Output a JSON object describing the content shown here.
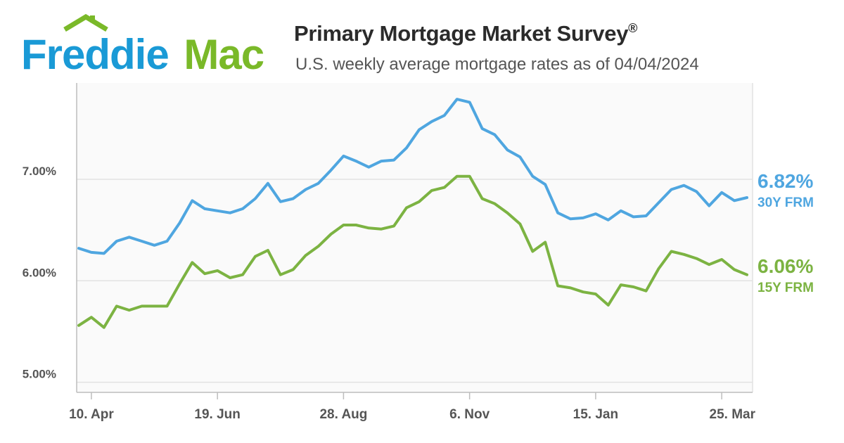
{
  "logo": {
    "text_1": "Freddie",
    "text_2": "Mac"
  },
  "header": {
    "title": "Primary Mortgage Market Survey",
    "title_mark": "®",
    "subtitle": "U.S. weekly average mortgage rates as of 04/04/2024"
  },
  "colors": {
    "series_30y": "#4fa6e0",
    "series_15y": "#7cb342",
    "logo_blue": "#1a9ad6",
    "logo_green": "#7ab929",
    "grid": "#e2e2e2",
    "axis": "#bdbdbd",
    "plot_bg": "#fafafa"
  },
  "chart_data": {
    "type": "line",
    "title": "Primary Mortgage Market Survey",
    "subtitle": "U.S. weekly average mortgage rates as of 04/04/2024",
    "xlabel": "",
    "ylabel": "",
    "ylim": [
      4.9,
      7.95
    ],
    "yticks": [
      {
        "value": 5.0,
        "label": "5.00%"
      },
      {
        "value": 6.0,
        "label": "6.00%"
      },
      {
        "value": 7.0,
        "label": "7.00%"
      }
    ],
    "xticks": [
      {
        "index": 1,
        "label": "10. Apr"
      },
      {
        "index": 11,
        "label": "19. Jun"
      },
      {
        "index": 21,
        "label": "28. Aug"
      },
      {
        "index": 31,
        "label": "6. Nov"
      },
      {
        "index": 41,
        "label": "15. Jan"
      },
      {
        "index": 51,
        "label": "25. Mar"
      }
    ],
    "grid": true,
    "series": [
      {
        "name": "30Y FRM",
        "end_label": "6.82%",
        "color": "#4fa6e0",
        "values": [
          6.32,
          6.28,
          6.27,
          6.39,
          6.43,
          6.39,
          6.35,
          6.39,
          6.57,
          6.79,
          6.71,
          6.69,
          6.67,
          6.71,
          6.81,
          6.96,
          6.78,
          6.81,
          6.9,
          6.96,
          7.09,
          7.23,
          7.18,
          7.12,
          7.18,
          7.19,
          7.31,
          7.49,
          7.57,
          7.63,
          7.79,
          7.76,
          7.5,
          7.44,
          7.29,
          7.22,
          7.03,
          6.95,
          6.67,
          6.61,
          6.62,
          6.66,
          6.6,
          6.69,
          6.63,
          6.64,
          6.77,
          6.9,
          6.94,
          6.88,
          6.74,
          6.87,
          6.79,
          6.82
        ]
      },
      {
        "name": "15Y FRM",
        "end_label": "6.06%",
        "color": "#7cb342",
        "values": [
          5.56,
          5.64,
          5.54,
          5.75,
          5.71,
          5.75,
          5.75,
          5.75,
          5.97,
          6.18,
          6.07,
          6.1,
          6.03,
          6.06,
          6.24,
          6.3,
          6.06,
          6.11,
          6.25,
          6.34,
          6.46,
          6.55,
          6.55,
          6.52,
          6.51,
          6.54,
          6.72,
          6.78,
          6.89,
          6.92,
          7.03,
          7.03,
          6.81,
          6.76,
          6.67,
          6.56,
          6.29,
          6.38,
          5.95,
          5.93,
          5.89,
          5.87,
          5.76,
          5.96,
          5.94,
          5.9,
          6.12,
          6.29,
          6.26,
          6.22,
          6.16,
          6.21,
          6.11,
          6.06
        ]
      }
    ]
  }
}
